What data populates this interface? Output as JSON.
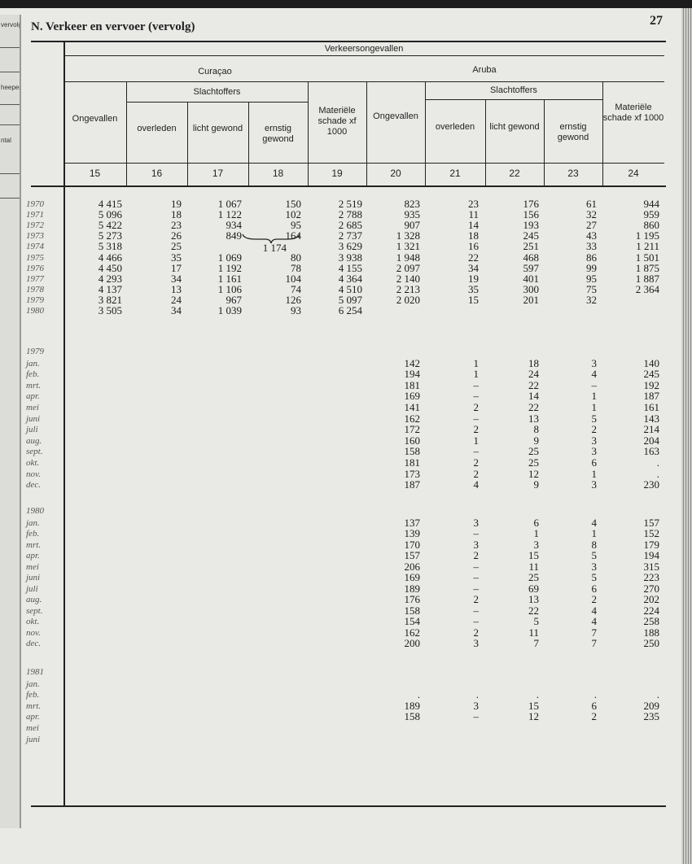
{
  "left_page": {
    "labels": [
      "vervolg",
      "heepen",
      "ntal"
    ]
  },
  "header": {
    "title": "N. Verkeer en vervoer (vervolg)",
    "page_number": "27"
  },
  "table": {
    "super_header": "Verkeersongevallen",
    "regions": [
      "Curaçao",
      "Aruba"
    ],
    "slachtoffers": "Slachtoffers",
    "columns": [
      {
        "label": "Ongevallen",
        "num": "15"
      },
      {
        "label": "overleden",
        "num": "16"
      },
      {
        "label": "licht gewond",
        "num": "17"
      },
      {
        "label": "ernstig gewond",
        "num": "18"
      },
      {
        "label": "Materiële schade xf 1000",
        "num": "19"
      },
      {
        "label": "Ongevallen",
        "num": "20"
      },
      {
        "label": "overleden",
        "num": "21"
      },
      {
        "label": "licht gewond",
        "num": "22"
      },
      {
        "label": "ernstig gewond",
        "num": "23"
      },
      {
        "label": "Materiële schade xf 1000",
        "num": "24"
      }
    ],
    "sections": [
      {
        "label": "",
        "rows": [
          {
            "label": "1970",
            "values": [
              "4 415",
              "19",
              "1 067",
              "150",
              "2 519",
              "823",
              "23",
              "176",
              "61",
              "944"
            ]
          },
          {
            "label": "1971",
            "values": [
              "5 096",
              "18",
              "1 122",
              "102",
              "2 788",
              "935",
              "11",
              "156",
              "32",
              "959"
            ]
          },
          {
            "label": "1972",
            "values": [
              "5 422",
              "23",
              "934",
              "95",
              "2 685",
              "907",
              "14",
              "193",
              "27",
              "860"
            ]
          },
          {
            "label": "1973",
            "values": [
              "5 273",
              "26",
              "849",
              "164",
              "2 737",
              "1 328",
              "18",
              "245",
              "43",
              "1 195"
            ]
          },
          {
            "label": "1974",
            "values": [
              "5 318",
              "25",
              "",
              "",
              "3 629",
              "1 321",
              "16",
              "251",
              "33",
              "1 211"
            ],
            "merged_17_18": "1 174"
          },
          {
            "label": "1975",
            "values": [
              "4 466",
              "35",
              "1 069",
              "80",
              "3 938",
              "1 948",
              "22",
              "468",
              "86",
              "1 501"
            ]
          },
          {
            "label": "1976",
            "values": [
              "4 450",
              "17",
              "1 192",
              "78",
              "4 155",
              "2 097",
              "34",
              "597",
              "99",
              "1 875"
            ]
          },
          {
            "label": "1977",
            "values": [
              "4 293",
              "34",
              "1 161",
              "104",
              "4 364",
              "2 140",
              "19",
              "401",
              "95",
              "1 887"
            ]
          },
          {
            "label": "1978",
            "values": [
              "4 137",
              "13",
              "1 106",
              "74",
              "4 510",
              "2 213",
              "35",
              "300",
              "75",
              "2 364"
            ]
          },
          {
            "label": "1979",
            "values": [
              "3 821",
              "24",
              "967",
              "126",
              "5 097",
              "2 020",
              "15",
              "201",
              "32",
              ""
            ]
          },
          {
            "label": "1980",
            "values": [
              "3 505",
              "34",
              "1 039",
              "93",
              "6 254",
              "",
              "",
              "",
              "",
              ""
            ]
          }
        ]
      },
      {
        "label": "1979",
        "rows": [
          {
            "label": "jan.",
            "values": [
              "",
              "",
              "",
              "",
              "",
              "142",
              "1",
              "18",
              "3",
              "140"
            ]
          },
          {
            "label": "feb.",
            "values": [
              "",
              "",
              "",
              "",
              "",
              "194",
              "1",
              "24",
              "4",
              "245"
            ]
          },
          {
            "label": "mrt.",
            "values": [
              "",
              "",
              "",
              "",
              "",
              "181",
              "–",
              "22",
              "–",
              "192"
            ]
          },
          {
            "label": "apr.",
            "values": [
              "",
              "",
              "",
              "",
              "",
              "169",
              "–",
              "14",
              "1",
              "187"
            ]
          },
          {
            "label": "mei",
            "values": [
              "",
              "",
              "",
              "",
              "",
              "141",
              "2",
              "22",
              "1",
              "161"
            ]
          },
          {
            "label": "juni",
            "values": [
              "",
              "",
              "",
              "",
              "",
              "162",
              "–",
              "13",
              "5",
              "143"
            ]
          },
          {
            "label": "juli",
            "values": [
              "",
              "",
              "",
              "",
              "",
              "172",
              "2",
              "8",
              "2",
              "214"
            ]
          },
          {
            "label": "aug.",
            "values": [
              "",
              "",
              "",
              "",
              "",
              "160",
              "1",
              "9",
              "3",
              "204"
            ]
          },
          {
            "label": "sept.",
            "values": [
              "",
              "",
              "",
              "",
              "",
              "158",
              "–",
              "25",
              "3",
              "163"
            ]
          },
          {
            "label": "okt.",
            "values": [
              "",
              "",
              "",
              "",
              "",
              "181",
              "2",
              "25",
              "6",
              "."
            ]
          },
          {
            "label": "nov.",
            "values": [
              "",
              "",
              "",
              "",
              "",
              "173",
              "2",
              "12",
              "1",
              "."
            ]
          },
          {
            "label": "dec.",
            "values": [
              "",
              "",
              "",
              "",
              "",
              "187",
              "4",
              "9",
              "3",
              "230"
            ]
          }
        ]
      },
      {
        "label": "1980",
        "rows": [
          {
            "label": "jan.",
            "values": [
              "",
              "",
              "",
              "",
              "",
              "137",
              "3",
              "6",
              "4",
              "157"
            ]
          },
          {
            "label": "feb.",
            "values": [
              "",
              "",
              "",
              "",
              "",
              "139",
              "–",
              "1",
              "1",
              "152"
            ]
          },
          {
            "label": "mrt.",
            "values": [
              "",
              "",
              "",
              "",
              "",
              "170",
              "3",
              "3",
              "8",
              "179"
            ]
          },
          {
            "label": "apr.",
            "values": [
              "",
              "",
              "",
              "",
              "",
              "157",
              "2",
              "15",
              "5",
              "194"
            ]
          },
          {
            "label": "mei",
            "values": [
              "",
              "",
              "",
              "",
              "",
              "206",
              "–",
              "11",
              "3",
              "315"
            ]
          },
          {
            "label": "juni",
            "values": [
              "",
              "",
              "",
              "",
              "",
              "169",
              "–",
              "25",
              "5",
              "223"
            ]
          },
          {
            "label": "juli",
            "values": [
              "",
              "",
              "",
              "",
              "",
              "189",
              "–",
              "69",
              "6",
              "270"
            ]
          },
          {
            "label": "aug.",
            "values": [
              "",
              "",
              "",
              "",
              "",
              "176",
              "2",
              "13",
              "2",
              "202"
            ]
          },
          {
            "label": "sept.",
            "values": [
              "",
              "",
              "",
              "",
              "",
              "158",
              "–",
              "22",
              "4",
              "224"
            ]
          },
          {
            "label": "okt.",
            "values": [
              "",
              "",
              "",
              "",
              "",
              "154",
              "–",
              "5",
              "4",
              "258"
            ]
          },
          {
            "label": "nov.",
            "values": [
              "",
              "",
              "",
              "",
              "",
              "162",
              "2",
              "11",
              "7",
              "188"
            ]
          },
          {
            "label": "dec.",
            "values": [
              "",
              "",
              "",
              "",
              "",
              "200",
              "3",
              "7",
              "7",
              "250"
            ]
          }
        ]
      },
      {
        "label": "1981",
        "rows": [
          {
            "label": "jan.",
            "values": [
              "",
              "",
              "",
              "",
              "",
              "",
              "",
              "",
              "",
              ""
            ]
          },
          {
            "label": "feb.",
            "values": [
              "",
              "",
              "",
              "",
              "",
              ".",
              ".",
              ".",
              ".",
              "."
            ]
          },
          {
            "label": "mrt.",
            "values": [
              "",
              "",
              "",
              "",
              "",
              "189",
              "3",
              "15",
              "6",
              "209"
            ]
          },
          {
            "label": "apr.",
            "values": [
              "",
              "",
              "",
              "",
              "",
              "158",
              "–",
              "12",
              "2",
              "235"
            ]
          },
          {
            "label": "mei",
            "values": [
              "",
              "",
              "",
              "",
              "",
              "",
              "",
              "",
              "",
              ""
            ]
          },
          {
            "label": "juni",
            "values": [
              "",
              "",
              "",
              "",
              "",
              "",
              "",
              "",
              "",
              ""
            ]
          }
        ]
      }
    ]
  }
}
